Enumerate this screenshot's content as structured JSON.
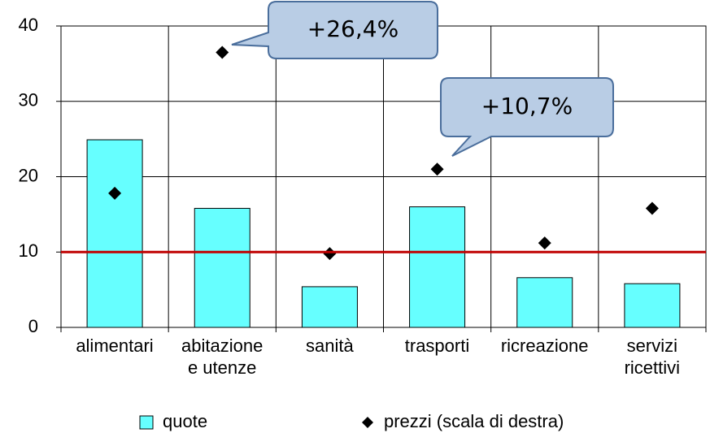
{
  "chart_data": {
    "type": "bar",
    "categories": [
      "alimentari",
      "abitazione\ne utenze",
      "sanità",
      "trasporti",
      "ricreazione",
      "servizi\nricettivi"
    ],
    "series": [
      {
        "name": "quote",
        "type": "bar",
        "color": "#66ffff",
        "values": [
          24.9,
          15.8,
          5.4,
          16.0,
          6.6,
          5.8
        ]
      },
      {
        "name": "prezzi (scala di destra)",
        "type": "scatter",
        "color": "#000000",
        "values": [
          17.8,
          36.5,
          9.8,
          21.0,
          11.2,
          15.8
        ]
      }
    ],
    "ylim": [
      0,
      40
    ],
    "yticks": [
      0,
      10,
      20,
      30,
      40
    ],
    "grid": true,
    "reference_line": {
      "value": 10,
      "color": "#c00000"
    },
    "annotations": [
      {
        "text": "+26,4%",
        "category": 1
      },
      {
        "text": "+10,7%",
        "category": 3
      }
    ],
    "legend": "bottom"
  }
}
